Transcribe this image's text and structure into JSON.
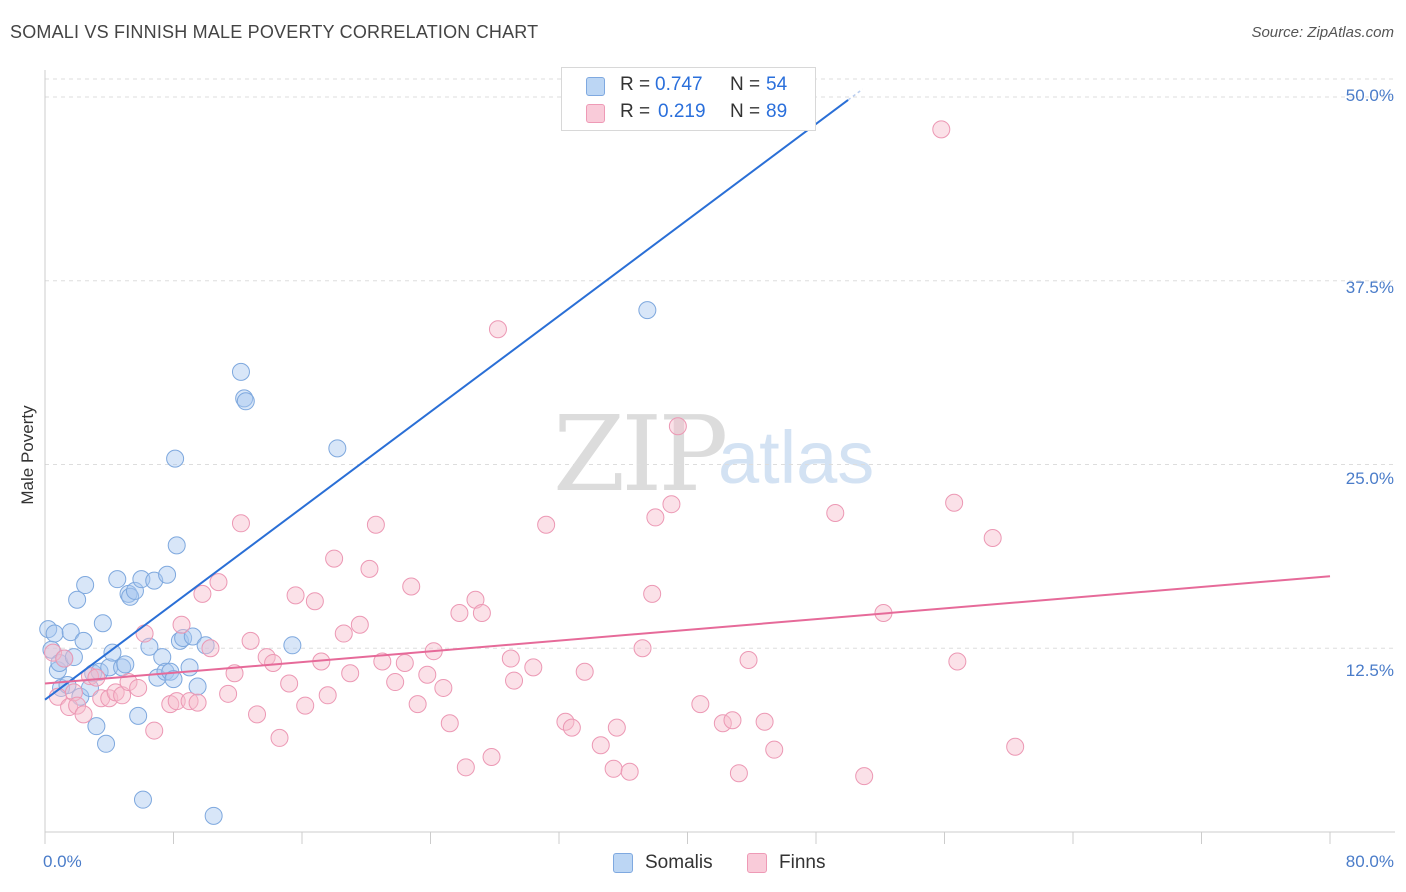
{
  "header": {
    "title": "SOMALI VS FINNISH MALE POVERTY CORRELATION CHART",
    "source": "Source: ZipAtlas.com"
  },
  "watermark": {
    "zip": "ZIP",
    "atlas": "atlas"
  },
  "legend_top": {
    "rows": [
      {
        "r_label": "R =",
        "r_value": "0.747",
        "n_label": "N =",
        "n_value": "54",
        "color": "#9fc3ee"
      },
      {
        "r_label": "R =",
        "r_value": "0.219",
        "n_label": "N =",
        "n_value": "89",
        "color": "#f6b3c8"
      }
    ]
  },
  "legend_bottom": {
    "items": [
      {
        "label": "Somalis",
        "color": "#9fc3ee"
      },
      {
        "label": "Finns",
        "color": "#f6b3c8"
      }
    ]
  },
  "chart_data": {
    "type": "scatter",
    "title": "SOMALI VS FINNISH MALE POVERTY CORRELATION CHART",
    "xlabel": "",
    "ylabel": "Male Poverty",
    "xlim": [
      0,
      80
    ],
    "ylim": [
      0,
      50
    ],
    "x_tick_labels": [
      "0.0%",
      "80.0%"
    ],
    "y_ticks": [
      12.5,
      25.0,
      37.5,
      50.0
    ],
    "y_tick_labels": [
      "12.5%",
      "25.0%",
      "37.5%",
      "50.0%"
    ],
    "grid": "horizontal dashed",
    "legend_position": "top-center",
    "colors": {
      "somalis_fill": "#a9c8ef",
      "somalis_line": "#2a6fd6",
      "finns_fill": "#f7bccd",
      "finns_line": "#e66a99"
    },
    "series": [
      {
        "name": "Somalis",
        "trend": {
          "x": [
            0,
            50
          ],
          "y": [
            9.0,
            49.8
          ]
        },
        "points": [
          [
            0.2,
            13.8
          ],
          [
            0.4,
            12.4
          ],
          [
            0.6,
            13.5
          ],
          [
            0.8,
            11.0
          ],
          [
            0.9,
            11.5
          ],
          [
            1.0,
            9.8
          ],
          [
            1.2,
            11.8
          ],
          [
            1.4,
            10.0
          ],
          [
            1.6,
            13.6
          ],
          [
            1.8,
            11.9
          ],
          [
            2.0,
            15.8
          ],
          [
            2.2,
            9.2
          ],
          [
            2.4,
            13.0
          ],
          [
            2.5,
            16.8
          ],
          [
            2.8,
            9.8
          ],
          [
            3.0,
            10.8
          ],
          [
            3.2,
            7.2
          ],
          [
            3.4,
            10.9
          ],
          [
            3.6,
            14.2
          ],
          [
            3.8,
            6.0
          ],
          [
            4.0,
            11.2
          ],
          [
            4.2,
            12.2
          ],
          [
            4.5,
            17.2
          ],
          [
            4.8,
            11.2
          ],
          [
            5.0,
            11.4
          ],
          [
            5.2,
            16.2
          ],
          [
            5.3,
            16.0
          ],
          [
            5.6,
            16.4
          ],
          [
            5.8,
            7.9
          ],
          [
            6.0,
            17.2
          ],
          [
            6.1,
            2.2
          ],
          [
            6.5,
            12.6
          ],
          [
            6.8,
            17.1
          ],
          [
            7.0,
            10.5
          ],
          [
            7.3,
            11.9
          ],
          [
            7.5,
            10.9
          ],
          [
            7.6,
            17.5
          ],
          [
            7.8,
            10.9
          ],
          [
            8.0,
            10.4
          ],
          [
            8.2,
            19.5
          ],
          [
            8.4,
            13.0
          ],
          [
            8.6,
            13.2
          ],
          [
            8.1,
            25.4
          ],
          [
            9.0,
            11.2
          ],
          [
            9.2,
            13.3
          ],
          [
            9.5,
            9.9
          ],
          [
            10.0,
            12.7
          ],
          [
            10.5,
            1.1
          ],
          [
            12.2,
            31.3
          ],
          [
            12.4,
            29.5
          ],
          [
            12.5,
            29.3
          ],
          [
            15.4,
            12.7
          ],
          [
            18.2,
            26.1
          ],
          [
            37.5,
            35.5
          ]
        ]
      },
      {
        "name": "Finns",
        "trend": {
          "x": [
            0,
            80
          ],
          "y": [
            10.1,
            17.4
          ]
        },
        "points": [
          [
            0.5,
            12.2
          ],
          [
            0.8,
            9.2
          ],
          [
            1.2,
            11.8
          ],
          [
            1.5,
            8.5
          ],
          [
            1.8,
            9.5
          ],
          [
            2.0,
            8.6
          ],
          [
            2.4,
            8.0
          ],
          [
            2.8,
            10.6
          ],
          [
            3.2,
            10.5
          ],
          [
            3.5,
            9.1
          ],
          [
            4.0,
            9.1
          ],
          [
            4.4,
            9.5
          ],
          [
            4.8,
            9.3
          ],
          [
            5.2,
            10.2
          ],
          [
            5.8,
            9.8
          ],
          [
            6.2,
            13.5
          ],
          [
            6.8,
            6.9
          ],
          [
            7.8,
            8.7
          ],
          [
            8.2,
            8.9
          ],
          [
            8.5,
            14.1
          ],
          [
            9.0,
            8.9
          ],
          [
            9.5,
            8.8
          ],
          [
            9.8,
            16.2
          ],
          [
            10.3,
            12.5
          ],
          [
            10.8,
            17.0
          ],
          [
            11.4,
            9.4
          ],
          [
            11.8,
            10.8
          ],
          [
            12.2,
            21.0
          ],
          [
            12.8,
            13.0
          ],
          [
            13.2,
            8.0
          ],
          [
            13.8,
            11.9
          ],
          [
            14.2,
            11.5
          ],
          [
            14.6,
            6.4
          ],
          [
            15.2,
            10.1
          ],
          [
            15.6,
            16.1
          ],
          [
            16.2,
            8.6
          ],
          [
            16.8,
            15.7
          ],
          [
            17.2,
            11.6
          ],
          [
            17.6,
            9.3
          ],
          [
            18.0,
            18.6
          ],
          [
            18.6,
            13.5
          ],
          [
            19.0,
            10.8
          ],
          [
            19.6,
            14.1
          ],
          [
            20.2,
            17.9
          ],
          [
            20.6,
            20.9
          ],
          [
            21.0,
            11.6
          ],
          [
            21.8,
            10.2
          ],
          [
            22.4,
            11.5
          ],
          [
            22.8,
            16.7
          ],
          [
            23.2,
            8.7
          ],
          [
            23.8,
            10.7
          ],
          [
            24.2,
            12.3
          ],
          [
            24.8,
            9.8
          ],
          [
            25.2,
            7.4
          ],
          [
            25.8,
            14.9
          ],
          [
            26.2,
            4.4
          ],
          [
            26.8,
            15.8
          ],
          [
            27.2,
            14.9
          ],
          [
            27.8,
            5.1
          ],
          [
            28.2,
            34.2
          ],
          [
            29.0,
            11.8
          ],
          [
            29.2,
            10.3
          ],
          [
            30.4,
            11.2
          ],
          [
            31.2,
            20.9
          ],
          [
            32.4,
            7.5
          ],
          [
            32.8,
            7.1
          ],
          [
            33.6,
            10.9
          ],
          [
            34.6,
            5.9
          ],
          [
            35.4,
            4.3
          ],
          [
            35.6,
            7.1
          ],
          [
            36.4,
            4.1
          ],
          [
            37.2,
            12.5
          ],
          [
            37.8,
            16.2
          ],
          [
            38.0,
            21.4
          ],
          [
            39.0,
            22.3
          ],
          [
            39.4,
            27.6
          ],
          [
            40.8,
            8.7
          ],
          [
            42.2,
            7.4
          ],
          [
            42.8,
            7.6
          ],
          [
            43.2,
            4.0
          ],
          [
            43.8,
            11.7
          ],
          [
            44.8,
            7.5
          ],
          [
            45.4,
            5.6
          ],
          [
            49.2,
            21.7
          ],
          [
            51.0,
            3.8
          ],
          [
            52.2,
            14.9
          ],
          [
            55.8,
            47.8
          ],
          [
            56.6,
            22.4
          ],
          [
            56.8,
            11.6
          ],
          [
            59.0,
            20.0
          ],
          [
            60.4,
            5.8
          ]
        ]
      }
    ]
  }
}
